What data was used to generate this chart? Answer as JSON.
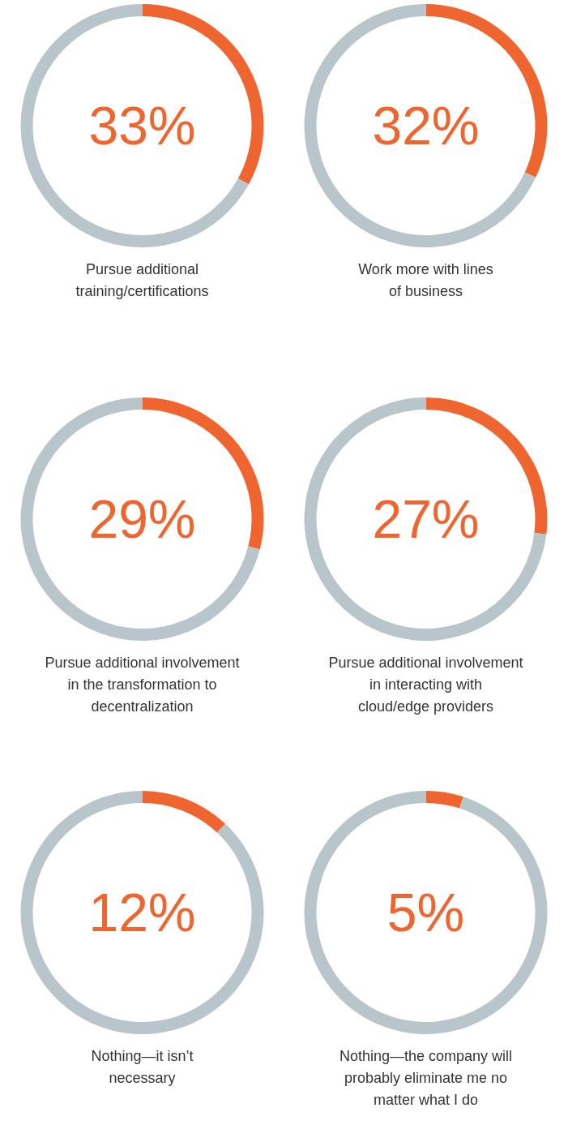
{
  "chart_data": [
    {
      "type": "donut",
      "title": "Pursue additional\ntraining/certifications",
      "categories": [
        null,
        null
      ],
      "values": [
        33,
        67
      ],
      "colors": [
        "#ee6530",
        "#b8c6cc"
      ],
      "annotations": [
        "33%"
      ]
    },
    {
      "type": "donut",
      "title": "Work more with lines\nof business",
      "categories": [
        null,
        null
      ],
      "values": [
        32,
        68
      ],
      "colors": [
        "#ee6530",
        "#b8c6cc"
      ],
      "annotations": [
        "32%"
      ]
    },
    {
      "type": "donut",
      "title": "Pursue additional involvement\nin the transformation to\ndecentralization",
      "categories": [
        null,
        null
      ],
      "values": [
        29,
        71
      ],
      "colors": [
        "#ee6530",
        "#b8c6cc"
      ],
      "annotations": [
        "29%"
      ]
    },
    {
      "type": "donut",
      "title": "Pursue additional involvement\nin interacting with\ncloud/edge providers",
      "categories": [
        null,
        null
      ],
      "values": [
        27,
        73
      ],
      "colors": [
        "#ee6530",
        "#b8c6cc"
      ],
      "annotations": [
        "27%"
      ]
    },
    {
      "type": "donut",
      "title": "Nothing—it isn’t\nnecessary",
      "categories": [
        null,
        null
      ],
      "values": [
        12,
        88
      ],
      "colors": [
        "#ee6530",
        "#b8c6cc"
      ],
      "annotations": [
        "12%"
      ]
    },
    {
      "type": "donut",
      "title": "Nothing—the company will\nprobably eliminate me no\nmatter what I do",
      "categories": [
        null,
        null
      ],
      "values": [
        5,
        95
      ],
      "colors": [
        "#ee6530",
        "#b8c6cc"
      ],
      "annotations": [
        "5%"
      ]
    }
  ]
}
